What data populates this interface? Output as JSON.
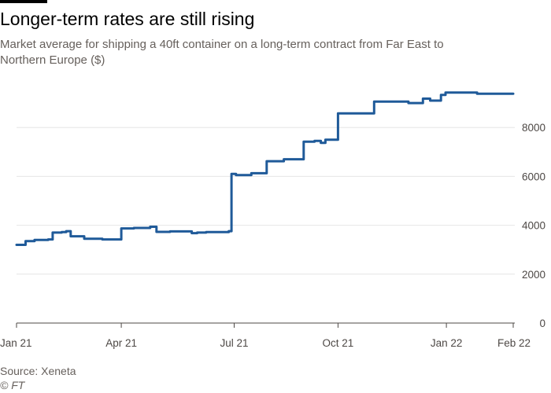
{
  "title": "Longer-term rates are still rising",
  "subtitle": "Market average for shipping a 40ft container on a long-term contract from Far East to Northern Europe ($)",
  "source": "Source: Xeneta",
  "credit": "© FT",
  "colors": {
    "line": "#1f5a99",
    "grid": "#e6e6e6",
    "axis": "#4d4845"
  },
  "chart_data": {
    "type": "line",
    "title": "Longer-term rates are still rising",
    "xlabel": "",
    "ylabel": "$",
    "ylim": [
      0,
      10000
    ],
    "xlim": [
      0,
      55
    ],
    "x_unit": "weeks since 1 Jan 2021",
    "grid": true,
    "y_ticks": [
      {
        "value": 0,
        "label": "0"
      },
      {
        "value": 2000,
        "label": "2000"
      },
      {
        "value": 4000,
        "label": "4000"
      },
      {
        "value": 6000,
        "label": "6000"
      },
      {
        "value": 8000,
        "label": "8000"
      }
    ],
    "x_ticks": [
      {
        "value": 0,
        "label": "Jan 21"
      },
      {
        "value": 11.6,
        "label": "Apr 21"
      },
      {
        "value": 24.1,
        "label": "Jul 21"
      },
      {
        "value": 35.6,
        "label": "Oct 21"
      },
      {
        "value": 47.6,
        "label": "Jan 22"
      },
      {
        "value": 55,
        "label": "Feb 22"
      }
    ],
    "series": [
      {
        "name": "Far East to Northern Europe long-term contract rate",
        "points": [
          [
            0,
            3200
          ],
          [
            1,
            3200
          ],
          [
            1,
            3350
          ],
          [
            2,
            3350
          ],
          [
            2,
            3400
          ],
          [
            3.5,
            3400
          ],
          [
            3.5,
            3420
          ],
          [
            4,
            3420
          ],
          [
            4,
            3700
          ],
          [
            5,
            3700
          ],
          [
            5,
            3720
          ],
          [
            5.5,
            3720
          ],
          [
            5.5,
            3760
          ],
          [
            6,
            3760
          ],
          [
            6,
            3550
          ],
          [
            7.5,
            3550
          ],
          [
            7.5,
            3450
          ],
          [
            9.5,
            3450
          ],
          [
            9.5,
            3420
          ],
          [
            11.6,
            3420
          ],
          [
            11.6,
            3870
          ],
          [
            13,
            3870
          ],
          [
            13,
            3890
          ],
          [
            14.8,
            3890
          ],
          [
            14.8,
            3940
          ],
          [
            15.5,
            3940
          ],
          [
            15.5,
            3730
          ],
          [
            17,
            3730
          ],
          [
            17,
            3750
          ],
          [
            19.4,
            3750
          ],
          [
            19.4,
            3680
          ],
          [
            20,
            3680
          ],
          [
            20,
            3700
          ],
          [
            21,
            3700
          ],
          [
            21,
            3720
          ],
          [
            23.5,
            3720
          ],
          [
            23.5,
            3760
          ],
          [
            23.8,
            3760
          ],
          [
            23.8,
            6100
          ],
          [
            24.3,
            6100
          ],
          [
            24.3,
            6050
          ],
          [
            26,
            6050
          ],
          [
            26,
            6130
          ],
          [
            27.7,
            6130
          ],
          [
            27.7,
            6620
          ],
          [
            29.6,
            6620
          ],
          [
            29.6,
            6700
          ],
          [
            31.8,
            6700
          ],
          [
            31.8,
            7420
          ],
          [
            33,
            7420
          ],
          [
            33,
            7450
          ],
          [
            33.7,
            7450
          ],
          [
            33.7,
            7370
          ],
          [
            34.2,
            7370
          ],
          [
            34.2,
            7500
          ],
          [
            35.6,
            7500
          ],
          [
            35.6,
            8580
          ],
          [
            39.6,
            8580
          ],
          [
            39.6,
            9060
          ],
          [
            43.4,
            9060
          ],
          [
            43.4,
            9000
          ],
          [
            45,
            9000
          ],
          [
            45,
            9180
          ],
          [
            45.8,
            9180
          ],
          [
            45.8,
            9100
          ],
          [
            47,
            9100
          ],
          [
            47,
            9330
          ],
          [
            47.5,
            9330
          ],
          [
            47.5,
            9430
          ],
          [
            51,
            9430
          ],
          [
            51,
            9380
          ],
          [
            55,
            9380
          ]
        ]
      }
    ]
  }
}
